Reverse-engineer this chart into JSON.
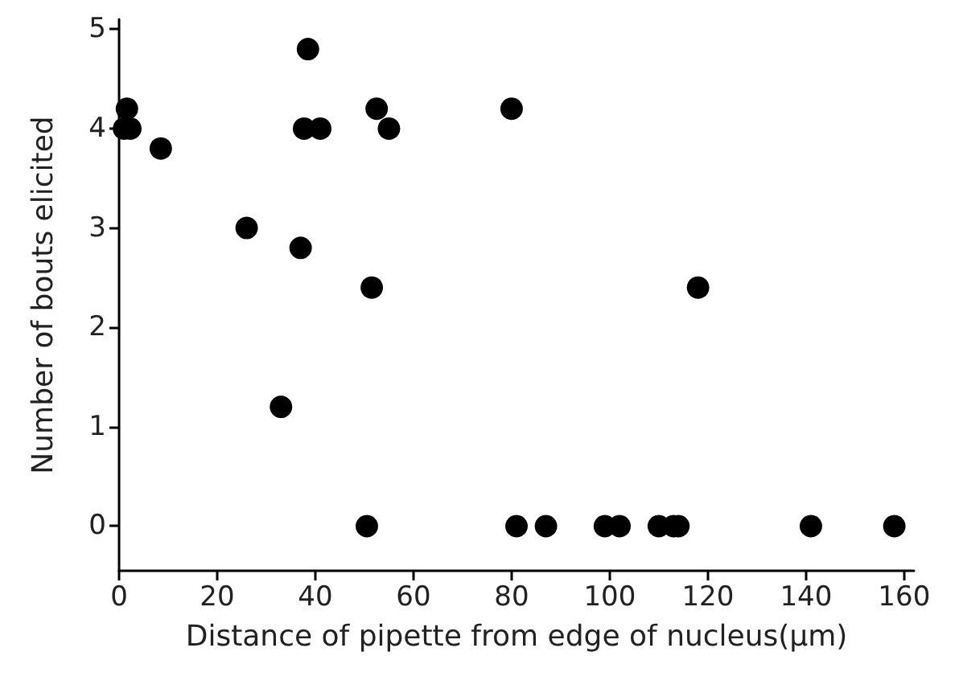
{
  "chart_data": {
    "type": "scatter",
    "xlabel": "Distance of pipette from edge of nucleus(μm)",
    "ylabel": "Number of bouts elicited",
    "x": [
      1,
      1.6,
      2.3,
      8.5,
      26,
      33,
      37,
      37.7,
      38.5,
      41,
      50.5,
      51.5,
      52.5,
      55,
      80,
      81,
      87,
      99,
      102,
      110,
      113,
      114,
      118,
      141,
      158
    ],
    "series": [
      {
        "color": "#000000",
        "values": [
          4,
          4.2,
          4,
          3.8,
          3,
          1.2,
          2.8,
          4,
          4.8,
          4,
          0,
          2.4,
          4.2,
          4,
          4.2,
          0,
          0,
          0,
          0,
          0,
          0,
          0,
          2.4,
          0,
          0
        ]
      }
    ],
    "xlim": [
      0,
      162
    ],
    "xticks": [
      0,
      20,
      40,
      60,
      80,
      100,
      120,
      140,
      160
    ],
    "ylim": [
      -0.45,
      5.1
    ],
    "yticks": [
      0,
      1,
      2,
      3,
      4,
      5
    ],
    "marker": "circle",
    "grid": false
  }
}
